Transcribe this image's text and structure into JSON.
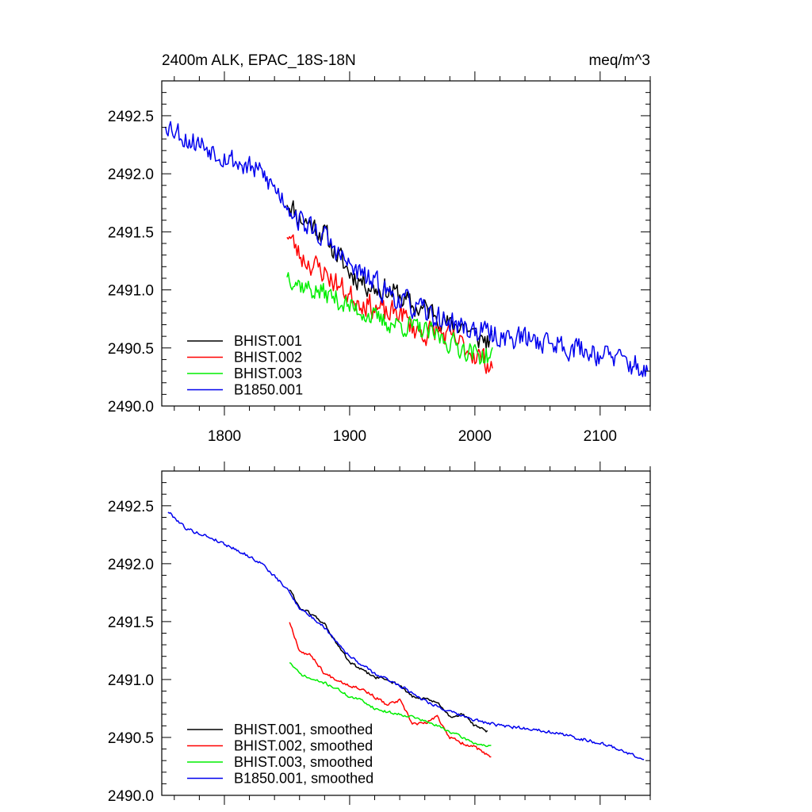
{
  "chart_data": [
    {
      "type": "line",
      "title": "2400m ALK, EPAC_18S-18N",
      "units": "meq/m^3",
      "xlim": [
        1750,
        2140
      ],
      "ylim": [
        2490.0,
        2492.8
      ],
      "x_ticks": [
        1800,
        1900,
        2000,
        2100
      ],
      "x_tick_labels": [
        "1800",
        "1900",
        "2000",
        "2100"
      ],
      "y_ticks": [
        2490.0,
        2490.5,
        2491.0,
        2491.5,
        2492.0,
        2492.5
      ],
      "y_tick_labels": [
        "2490.0",
        "2490.5",
        "2491.0",
        "2491.5",
        "2492.0",
        "2492.5"
      ],
      "legend_position": "bottom-left",
      "series": [
        {
          "name": "BHIST.001",
          "color": "#000000",
          "noise": 0.09,
          "seed": 11,
          "x": [
            1850,
            1860,
            1870,
            1880,
            1890,
            1900,
            1910,
            1920,
            1930,
            1940,
            1950,
            1960,
            1970,
            1980,
            1990,
            2000,
            2014
          ],
          "y": [
            2491.78,
            2491.62,
            2491.56,
            2491.48,
            2491.3,
            2491.15,
            2491.08,
            2491.02,
            2491.0,
            2490.95,
            2490.85,
            2490.83,
            2490.8,
            2490.68,
            2490.72,
            2490.6,
            2490.55
          ]
        },
        {
          "name": "BHIST.002",
          "color": "#ff0000",
          "noise": 0.09,
          "seed": 23,
          "x": [
            1850,
            1860,
            1870,
            1880,
            1890,
            1900,
            1910,
            1920,
            1930,
            1940,
            1950,
            1960,
            1970,
            1980,
            1990,
            2000,
            2014
          ],
          "y": [
            2491.5,
            2491.3,
            2491.22,
            2491.15,
            2491.05,
            2490.95,
            2490.9,
            2490.85,
            2490.78,
            2490.82,
            2490.68,
            2490.62,
            2490.65,
            2490.58,
            2490.52,
            2490.45,
            2490.35
          ]
        },
        {
          "name": "BHIST.003",
          "color": "#00ee00",
          "noise": 0.08,
          "seed": 37,
          "x": [
            1850,
            1860,
            1870,
            1880,
            1890,
            1900,
            1910,
            1920,
            1930,
            1940,
            1950,
            1960,
            1970,
            1980,
            1990,
            2000,
            2014
          ],
          "y": [
            2491.15,
            2491.05,
            2491.0,
            2490.97,
            2490.92,
            2490.85,
            2490.82,
            2490.75,
            2490.72,
            2490.7,
            2490.68,
            2490.64,
            2490.6,
            2490.55,
            2490.5,
            2490.45,
            2490.42
          ]
        },
        {
          "name": "B1850.001",
          "color": "#0000ee",
          "noise": 0.09,
          "seed": 53,
          "x": [
            1753,
            1770,
            1790,
            1810,
            1830,
            1850,
            1860,
            1880,
            1900,
            1920,
            1940,
            1960,
            1980,
            2000,
            2020,
            2040,
            2060,
            2080,
            2100,
            2120,
            2138
          ],
          "y": [
            2492.45,
            2492.3,
            2492.22,
            2492.1,
            2492.0,
            2491.75,
            2491.6,
            2491.45,
            2491.2,
            2491.05,
            2490.92,
            2490.8,
            2490.72,
            2490.65,
            2490.6,
            2490.58,
            2490.55,
            2490.5,
            2490.45,
            2490.38,
            2490.3
          ]
        }
      ]
    },
    {
      "type": "line",
      "title": "",
      "units": "",
      "xlim": [
        1750,
        2140
      ],
      "ylim": [
        2490.0,
        2492.8
      ],
      "x_ticks": [
        1800,
        1900,
        2000,
        2100
      ],
      "x_tick_labels": [],
      "y_ticks": [
        2490.0,
        2490.5,
        2491.0,
        2491.5,
        2492.0,
        2492.5
      ],
      "y_tick_labels": [
        "2490.0",
        "2490.5",
        "2491.0",
        "2491.5",
        "2492.0",
        "2492.5"
      ],
      "legend_position": "bottom-left",
      "series": [
        {
          "name": "BHIST.001, smoothed",
          "color": "#000000",
          "noise": 0.012,
          "seed": 61,
          "x": [
            1852,
            1860,
            1870,
            1880,
            1890,
            1900,
            1910,
            1920,
            1930,
            1940,
            1950,
            1960,
            1970,
            1980,
            1990,
            2000,
            2010
          ],
          "y": [
            2491.78,
            2491.62,
            2491.56,
            2491.48,
            2491.3,
            2491.15,
            2491.08,
            2491.02,
            2491.0,
            2490.95,
            2490.85,
            2490.83,
            2490.8,
            2490.68,
            2490.7,
            2490.6,
            2490.55
          ]
        },
        {
          "name": "BHIST.002, smoothed",
          "color": "#ff0000",
          "noise": 0.012,
          "seed": 67,
          "x": [
            1852,
            1860,
            1870,
            1880,
            1890,
            1900,
            1910,
            1920,
            1930,
            1940,
            1950,
            1960,
            1970,
            1980,
            1990,
            2000,
            2013
          ],
          "y": [
            2491.5,
            2491.25,
            2491.2,
            2491.05,
            2491.0,
            2490.95,
            2490.92,
            2490.85,
            2490.78,
            2490.82,
            2490.62,
            2490.62,
            2490.68,
            2490.5,
            2490.45,
            2490.42,
            2490.32
          ]
        },
        {
          "name": "BHIST.003, smoothed",
          "color": "#00ee00",
          "noise": 0.01,
          "seed": 71,
          "x": [
            1852,
            1860,
            1870,
            1880,
            1890,
            1900,
            1910,
            1920,
            1930,
            1940,
            1950,
            1960,
            1970,
            1980,
            1990,
            2000,
            2013
          ],
          "y": [
            2491.15,
            2491.05,
            2491.0,
            2490.97,
            2490.92,
            2490.85,
            2490.82,
            2490.75,
            2490.72,
            2490.7,
            2490.68,
            2490.64,
            2490.6,
            2490.55,
            2490.5,
            2490.45,
            2490.42
          ]
        },
        {
          "name": "B1850.001, smoothed",
          "color": "#0000ee",
          "noise": 0.012,
          "seed": 79,
          "x": [
            1755,
            1770,
            1790,
            1810,
            1830,
            1850,
            1860,
            1880,
            1900,
            1920,
            1940,
            1960,
            1980,
            2000,
            2020,
            2040,
            2060,
            2080,
            2100,
            2120,
            2135
          ],
          "y": [
            2492.45,
            2492.3,
            2492.22,
            2492.12,
            2492.0,
            2491.78,
            2491.62,
            2491.45,
            2491.2,
            2491.05,
            2490.95,
            2490.82,
            2490.72,
            2490.65,
            2490.6,
            2490.58,
            2490.55,
            2490.5,
            2490.45,
            2490.38,
            2490.3
          ]
        }
      ]
    }
  ]
}
